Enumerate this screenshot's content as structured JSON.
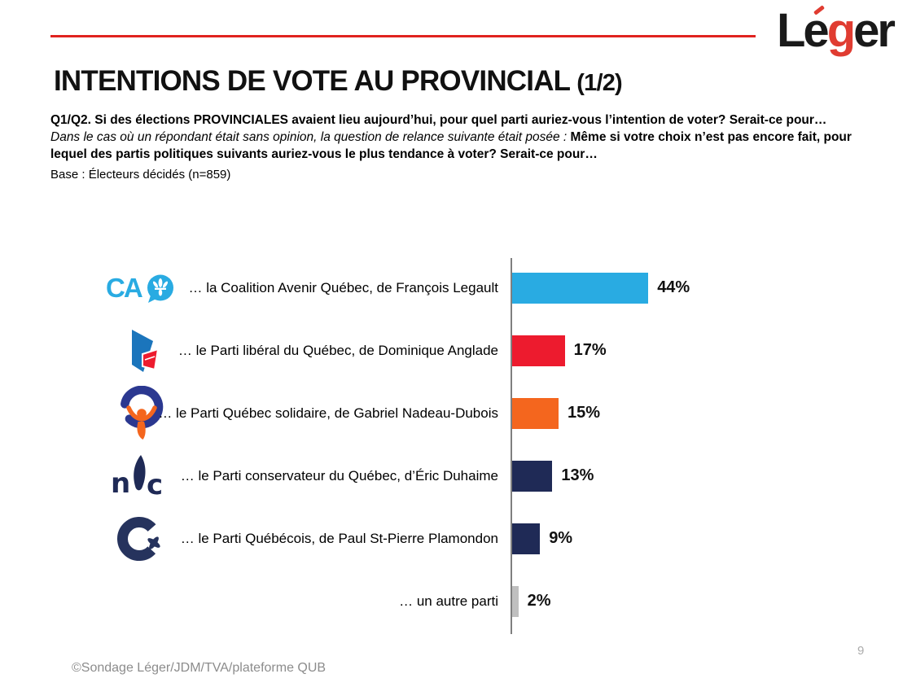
{
  "brand": {
    "name": "Léger",
    "logo": {
      "le": "Le",
      "g": "g",
      "er": "er"
    },
    "logo_black": "#1A1A1A",
    "logo_red": "#E03C31",
    "rule_red": "#E0231F"
  },
  "header": {
    "title": "INTENTIONS DE VOTE AU PROVINCIAL",
    "title_suffix": "(1/2)"
  },
  "intro": {
    "question_bold": "Q1/Q2. Si des élections PROVINCIALES avaient lieu aujourd’hui, pour quel parti auriez-vous l’intention de voter? Serait-ce pour…",
    "relance_italic": "Dans le cas où un répondant était sans opinion, la question de relance suivante était posée : ",
    "relance_bold": "Même si votre choix n’est pas encore fait, pour lequel des partis politiques suivants auriez-vous le plus tendance à voter? Serait-ce pour…",
    "base": "Base : Électeurs décidés (n=859)"
  },
  "chart_data": {
    "type": "bar",
    "orientation": "horizontal",
    "unit": "percent",
    "xlim": [
      0,
      50
    ],
    "grid": false,
    "legend": "none",
    "axis_baseline_color": "#7F7F7F",
    "categories": [
      "… la Coalition Avenir Québec, de François Legault",
      "… le Parti libéral du Québec, de Dominique Anglade",
      "… le Parti Québec solidaire, de Gabriel Nadeau-Dubois",
      "… le Parti conservateur du Québec, d’Éric Duhaime",
      "… le Parti Québécois, de Paul St-Pierre Plamondon",
      "… un autre parti"
    ],
    "values": [
      44,
      17,
      15,
      13,
      9,
      2
    ],
    "rows": [
      {
        "party": "CAQ",
        "label": "… la Coalition Avenir Québec, de François Legault",
        "value": 44,
        "value_label": "44%",
        "color": "#29ABE2"
      },
      {
        "party": "PLQ",
        "label": "… le Parti libéral du Québec, de Dominique Anglade",
        "value": 17,
        "value_label": "17%",
        "color": "#ED1B2E"
      },
      {
        "party": "QS",
        "label": "… le Parti Québec solidaire, de Gabriel Nadeau-Dubois",
        "value": 15,
        "value_label": "15%",
        "color": "#F4661E"
      },
      {
        "party": "PCQ",
        "label": "… le Parti conservateur du Québec, d’Éric Duhaime",
        "value": 13,
        "value_label": "13%",
        "color": "#1F2A56"
      },
      {
        "party": "PQ",
        "label": "… le Parti Québécois, de Paul St-Pierre Plamondon",
        "value": 9,
        "value_label": "9%",
        "color": "#1F2A56"
      },
      {
        "party": "Autre",
        "label": "… un autre parti",
        "value": 2,
        "value_label": "2%",
        "color": "#BFBFBF"
      }
    ]
  },
  "footer": {
    "source": "©Sondage Léger/JDM/TVA/plateforme QUB",
    "page_number": "9"
  }
}
